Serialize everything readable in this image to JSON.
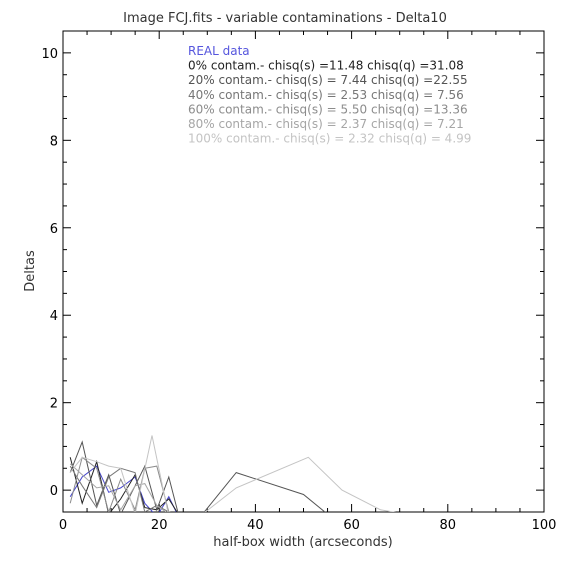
{
  "chart_data": {
    "type": "line",
    "title": "Image FCJ.fits  -  variable contaminations  -  Delta10",
    "xlabel": "half-box width (arcseconds)",
    "ylabel": "Deltas",
    "xlim": [
      0,
      100
    ],
    "ylim": [
      -0.5,
      10.5
    ],
    "x_ticks": [
      0,
      20,
      40,
      60,
      80,
      100
    ],
    "x_tick_labels": [
      "0",
      "20",
      "40",
      "60",
      "80",
      "100"
    ],
    "y_ticks": [
      0,
      2,
      4,
      6,
      8,
      10
    ],
    "y_tick_labels": [
      "0",
      "2",
      "4",
      "6",
      "8",
      "10"
    ],
    "legend_position": "top-center",
    "legend": [
      {
        "text": "REAL data",
        "color": "#5555dd"
      },
      {
        "text": "0% contam.-  chisq(s) =11.48 chisq(q) =31.08",
        "color": "#222222"
      },
      {
        "text": "20% contam.-  chisq(s) = 7.44 chisq(q) =22.55",
        "color": "#555555"
      },
      {
        "text": "40% contam.-  chisq(s) = 2.53 chisq(q) =  7.56",
        "color": "#777777"
      },
      {
        "text": "60% contam.-  chisq(s) = 5.50 chisq(q) =13.36",
        "color": "#8c8c8c"
      },
      {
        "text": "80% contam.-  chisq(s) = 2.37 chisq(q) =  7.21",
        "color": "#a6a6a6"
      },
      {
        "text": "100% contam.-  chisq(s) = 2.32 chisq(q) =  4.99",
        "color": "#c4c4c4"
      }
    ],
    "series": [
      {
        "color": "#4444cc",
        "x": [
          1.5,
          4,
          7,
          9.5,
          12,
          15,
          17,
          19.5,
          22,
          24
        ],
        "y": [
          -0.15,
          0.3,
          0.55,
          -0.05,
          0.05,
          0.3,
          -0.3,
          -0.6,
          -0.15,
          -0.6
        ]
      },
      {
        "color": "#222222",
        "x": [
          1.5,
          4,
          7,
          9.5,
          12,
          15,
          17,
          19.5,
          22,
          24,
          27
        ],
        "y": [
          0.75,
          -0.3,
          0.65,
          -0.55,
          -0.2,
          0.35,
          -0.4,
          -0.45,
          -0.2,
          -0.55,
          -0.6
        ]
      },
      {
        "color": "#555555",
        "x": [
          1.5,
          4,
          7,
          9.5,
          12,
          15,
          17,
          19.5,
          22,
          24,
          29,
          36,
          50,
          55
        ],
        "y": [
          0.4,
          1.1,
          -0.35,
          0.35,
          -0.55,
          0.1,
          0.55,
          -0.45,
          0.3,
          -0.55,
          -0.55,
          0.4,
          -0.1,
          -0.55
        ]
      },
      {
        "color": "#777777",
        "x": [
          1.5,
          4,
          7,
          9.5,
          12,
          15,
          17,
          19.5,
          22,
          24
        ],
        "y": [
          0.55,
          0.1,
          -0.4,
          0.3,
          0.5,
          0.4,
          -0.5,
          -0.35,
          -0.5,
          -0.55
        ]
      },
      {
        "color": "#8c8c8c",
        "x": [
          1.5,
          4,
          7,
          9.5,
          12,
          15,
          17,
          19.5,
          22,
          24
        ],
        "y": [
          -0.3,
          0.75,
          0.5,
          -0.5,
          0.25,
          -0.45,
          0.5,
          0.55,
          -0.5,
          -0.6
        ]
      },
      {
        "color": "#a6a6a6",
        "x": [
          1.5,
          4,
          7,
          9.5,
          12,
          15,
          17,
          19.5,
          22,
          24
        ],
        "y": [
          0.6,
          0.35,
          0.05,
          0.1,
          -0.45,
          0.1,
          0.15,
          -0.35,
          -0.55,
          -0.55
        ]
      },
      {
        "color": "#c4c4c4",
        "x": [
          1.5,
          4,
          7,
          9.5,
          12,
          15,
          18.5,
          22,
          25,
          29,
          36,
          51,
          58,
          66,
          74
        ],
        "y": [
          0.4,
          0.75,
          0.65,
          0.55,
          0.5,
          -0.55,
          1.25,
          -0.6,
          -0.55,
          -0.55,
          0.05,
          0.75,
          0.0,
          -0.45,
          -0.6
        ]
      }
    ]
  }
}
